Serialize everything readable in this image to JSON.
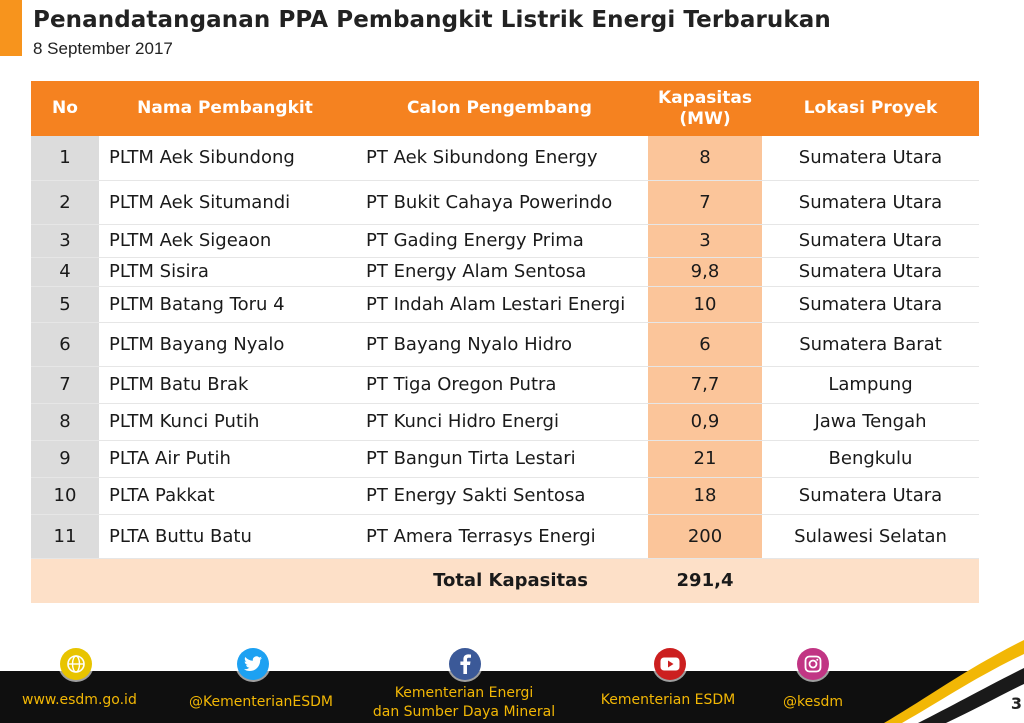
{
  "header": {
    "title": "Penandatanganan PPA Pembangkit Listrik Energi Terbarukan",
    "subtitle": "8 September 2017"
  },
  "table": {
    "columns": [
      "No",
      "Nama Pembangkit",
      "Calon Pengembang",
      "Kapasitas (MW)",
      "Lokasi Proyek"
    ],
    "rows": [
      {
        "no": "1",
        "name": "PLTM Aek Sibundong",
        "developer": "PT Aek Sibundong Energy",
        "capacity": "8",
        "location": "Sumatera Utara"
      },
      {
        "no": "2",
        "name": "PLTM Aek Situmandi",
        "developer": "PT Bukit Cahaya Powerindo",
        "capacity": "7",
        "location": "Sumatera Utara"
      },
      {
        "no": "3",
        "name": "PLTM Aek Sigeaon",
        "developer": "PT Gading Energy Prima",
        "capacity": "3",
        "location": "Sumatera Utara"
      },
      {
        "no": "4",
        "name": "PLTM Sisira",
        "developer": "PT Energy Alam Sentosa",
        "capacity": "9,8",
        "location": "Sumatera Utara"
      },
      {
        "no": "5",
        "name": "PLTM Batang Toru 4",
        "developer": "PT Indah Alam Lestari Energi",
        "capacity": "10",
        "location": "Sumatera Utara"
      },
      {
        "no": "6",
        "name": "PLTM Bayang Nyalo",
        "developer": "PT Bayang Nyalo Hidro",
        "capacity": "6",
        "location": "Sumatera Barat"
      },
      {
        "no": "7",
        "name": "PLTM Batu Brak",
        "developer": "PT Tiga Oregon Putra",
        "capacity": "7,7",
        "location": "Lampung"
      },
      {
        "no": "8",
        "name": "PLTM Kunci Putih",
        "developer": "PT Kunci Hidro Energi",
        "capacity": "0,9",
        "location": "Jawa Tengah"
      },
      {
        "no": "9",
        "name": "PLTA Air Putih",
        "developer": "PT Bangun Tirta Lestari",
        "capacity": "21",
        "location": "Bengkulu"
      },
      {
        "no": "10",
        "name": "PLTA Pakkat",
        "developer": "PT Energy Sakti Sentosa",
        "capacity": "18",
        "location": "Sumatera Utara"
      },
      {
        "no": "11",
        "name": "PLTA Buttu Batu",
        "developer": "PT Amera Terrasys Energi",
        "capacity": "200",
        "location": "Sulawesi Selatan"
      }
    ],
    "total": {
      "label": "Total Kapasitas",
      "value": "291,4"
    }
  },
  "footer": {
    "items": [
      {
        "icon": "globe-icon",
        "text": "www.esdm.go.id"
      },
      {
        "icon": "twitter-icon",
        "text": "@KementerianESDM"
      },
      {
        "icon": "facebook-icon",
        "text_line1": "Kementerian Energi",
        "text_line2": "dan Sumber Daya Mineral"
      },
      {
        "icon": "youtube-icon",
        "text": "Kementerian ESDM"
      },
      {
        "icon": "instagram-icon",
        "text": "@kesdm"
      }
    ],
    "page_number": "3"
  },
  "colors": {
    "accent": "#f58220",
    "capacity_column": "#fbc59a",
    "number_column": "#dcdcdc",
    "total_row": "#fde0c8",
    "footer_bg": "#0f0f0f",
    "footer_text": "#f2b705"
  }
}
